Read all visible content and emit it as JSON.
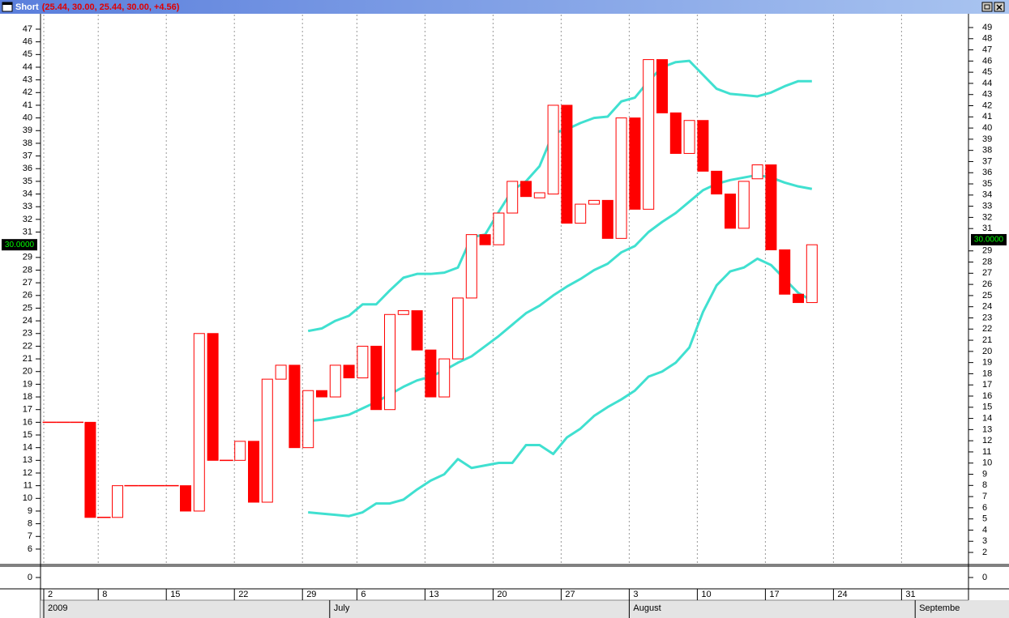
{
  "window_title": "Short",
  "window_values": "(25.44, 30.00, 25.44, 30.00, +4.56)",
  "chart_data": {
    "type": "candlestick",
    "x": [
      "2009-06-02",
      "2009-06-03",
      "2009-06-04",
      "2009-06-05",
      "2009-06-08",
      "2009-06-09",
      "2009-06-10",
      "2009-06-11",
      "2009-06-12",
      "2009-06-15",
      "2009-06-16",
      "2009-06-17",
      "2009-06-18",
      "2009-06-19",
      "2009-06-22",
      "2009-06-23",
      "2009-06-24",
      "2009-06-25",
      "2009-06-26",
      "2009-06-29",
      "2009-06-30",
      "2009-07-01",
      "2009-07-02",
      "2009-07-06",
      "2009-07-07",
      "2009-07-08",
      "2009-07-09",
      "2009-07-10",
      "2009-07-13",
      "2009-07-14",
      "2009-07-15",
      "2009-07-16",
      "2009-07-17",
      "2009-07-20",
      "2009-07-21",
      "2009-07-22",
      "2009-07-23",
      "2009-07-24",
      "2009-07-27",
      "2009-07-28",
      "2009-07-29",
      "2009-07-30",
      "2009-07-31",
      "2009-08-03",
      "2009-08-04",
      "2009-08-05",
      "2009-08-06",
      "2009-08-07",
      "2009-08-10",
      "2009-08-11",
      "2009-08-12",
      "2009-08-13",
      "2009-08-14",
      "2009-08-17",
      "2009-08-18",
      "2009-08-19",
      "2009-08-20"
    ],
    "open": [
      16,
      16,
      16,
      16,
      8.5,
      8.5,
      11,
      11,
      11,
      11,
      11,
      9,
      23,
      13,
      13,
      14.5,
      9.7,
      19.4,
      20.5,
      14,
      18.5,
      18,
      20.5,
      19.5,
      22,
      17,
      24.5,
      24.8,
      21.7,
      18,
      21,
      25.8,
      30.8,
      30,
      32.5,
      35,
      33.7,
      34,
      41,
      31.7,
      33.2,
      33.5,
      30.5,
      40,
      32.8,
      44.6,
      40.4,
      37.2,
      39.8,
      35.8,
      34,
      31.3,
      35.2,
      36.3,
      29.6,
      26.1,
      25.44
    ],
    "close": [
      16,
      16,
      16,
      8.5,
      8.5,
      11,
      11,
      11,
      11,
      11,
      9,
      23,
      13,
      13,
      14.5,
      9.7,
      19.4,
      20.5,
      14,
      18.5,
      18,
      20.5,
      19.5,
      22,
      17,
      24.5,
      24.8,
      21.7,
      18,
      21,
      25.8,
      30.8,
      30,
      32.5,
      35,
      33.8,
      34.1,
      41,
      31.7,
      33.2,
      33.5,
      30.5,
      40,
      32.8,
      44.6,
      40.4,
      37.2,
      39.8,
      35.8,
      34,
      31.3,
      35,
      36.3,
      29.6,
      26.1,
      25.44,
      30
    ],
    "color": "#ff0000",
    "series": [
      {
        "color": "#40e0d0",
        "values": [
          null,
          null,
          null,
          null,
          null,
          null,
          null,
          null,
          null,
          null,
          null,
          null,
          null,
          null,
          null,
          null,
          null,
          null,
          null,
          23.2,
          23.4,
          24.0,
          24.4,
          25.3,
          25.3,
          26.4,
          27.4,
          27.7,
          27.7,
          27.8,
          28.2,
          30.6,
          30.8,
          32.6,
          34.3,
          35.0,
          36.2,
          38.8,
          39.1,
          39.6,
          40.0,
          40.1,
          41.3,
          41.6,
          42.9,
          44.0,
          44.4,
          44.5,
          43.4,
          42.3,
          41.9,
          41.8,
          41.7,
          42.0,
          42.5,
          42.9,
          42.9
        ]
      },
      {
        "color": "#40e0d0",
        "values": [
          null,
          null,
          null,
          null,
          null,
          null,
          null,
          null,
          null,
          null,
          null,
          null,
          null,
          null,
          null,
          null,
          null,
          null,
          null,
          16.1,
          16.2,
          16.4,
          16.6,
          17.1,
          17.6,
          18.2,
          18.8,
          19.3,
          19.6,
          20.1,
          20.7,
          21.2,
          22.0,
          22.8,
          23.7,
          24.6,
          25.2,
          26.0,
          26.7,
          27.3,
          28.0,
          28.5,
          29.4,
          29.9,
          31.0,
          31.8,
          32.5,
          33.4,
          34.3,
          34.8,
          35.1,
          35.3,
          35.5,
          35.3,
          34.9,
          34.6,
          34.4
        ]
      },
      {
        "color": "#40e0d0",
        "values": [
          null,
          null,
          null,
          null,
          null,
          null,
          null,
          null,
          null,
          null,
          null,
          null,
          null,
          null,
          null,
          null,
          null,
          null,
          null,
          8.9,
          8.8,
          8.7,
          8.6,
          8.9,
          9.6,
          9.6,
          9.9,
          10.7,
          11.4,
          11.9,
          13.1,
          12.4,
          12.6,
          12.8,
          12.8,
          14.2,
          14.2,
          13.5,
          14.8,
          15.5,
          16.5,
          17.2,
          17.8,
          18.5,
          19.6,
          20.0,
          20.7,
          21.9,
          24.7,
          26.8,
          27.9,
          28.2,
          28.9,
          28.4,
          27.3,
          26.2,
          25.6
        ]
      }
    ],
    "ylim": [
      4.91,
      48.15
    ],
    "yticks": [
      6,
      7,
      8,
      9,
      10,
      11,
      12,
      13,
      14,
      15,
      16,
      17,
      18,
      19,
      20,
      21,
      22,
      23,
      24,
      25,
      26,
      27,
      28,
      29,
      31,
      32,
      33,
      34,
      35,
      36,
      37,
      38,
      39,
      40,
      41,
      42,
      43,
      44,
      45,
      46,
      47
    ],
    "y2lim": [
      1.06,
      50.16
    ],
    "y2ticks": [
      2,
      3,
      4,
      5,
      6,
      7,
      8,
      9,
      10,
      11,
      12,
      13,
      14,
      15,
      16,
      17,
      18,
      19,
      20,
      21,
      22,
      23,
      24,
      25,
      26,
      27,
      28,
      29,
      31,
      32,
      33,
      34,
      35,
      36,
      37,
      38,
      39,
      40,
      41,
      42,
      43,
      44,
      45,
      46,
      47,
      48,
      49
    ],
    "last_value": {
      "value": 30,
      "label": "30.0000"
    },
    "xticks": [
      {
        "value": "2009-06-02",
        "label": "2"
      },
      {
        "value": "2009-06-08",
        "label": "8"
      },
      {
        "value": "2009-06-15",
        "label": "15"
      },
      {
        "value": "2009-06-22",
        "label": "22"
      },
      {
        "value": "2009-06-29",
        "label": "29"
      },
      {
        "value": "2009-07-06",
        "label": "6"
      },
      {
        "value": "2009-07-13",
        "label": "13"
      },
      {
        "value": "2009-07-20",
        "label": "20"
      },
      {
        "value": "2009-07-27",
        "label": "27"
      },
      {
        "value": "2009-08-03",
        "label": "3"
      },
      {
        "value": "2009-08-10",
        "label": "10"
      },
      {
        "value": "2009-08-17",
        "label": "17"
      },
      {
        "value": "2009-08-24",
        "label": "24"
      },
      {
        "value": "2009-08-31",
        "label": "31"
      }
    ],
    "month_ticks": [
      {
        "value": "2009-06-02",
        "label": "2009"
      },
      {
        "value": "2009-07-01",
        "label": "July"
      },
      {
        "value": "2009-08-03",
        "label": "August"
      },
      {
        "value": "2009-09-01",
        "label": "Septembe"
      }
    ],
    "grid": true,
    "lower_panel": {
      "ylim": [
        -1,
        1
      ],
      "yticks": [
        0
      ],
      "y2ticks": [
        0
      ]
    }
  }
}
